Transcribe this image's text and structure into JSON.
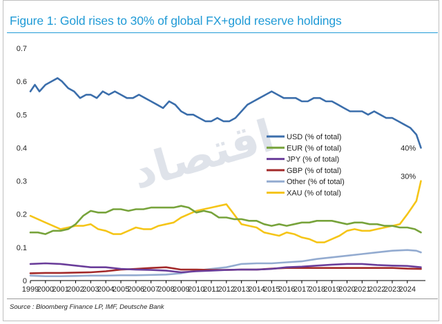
{
  "header": {
    "title": "Figure 1: Gold rises to 30% of global FX+gold reserve holdings"
  },
  "footer": {
    "source": "Source : Bloomberg Finance LP, IMF, Deutsche Bank"
  },
  "watermark": {
    "text": "اقتصاد"
  },
  "chart_data": {
    "type": "line",
    "title": "Figure 1: Gold rises to 30% of global FX+gold reserve holdings",
    "xlabel": "",
    "ylabel": "",
    "xlim": [
      1999,
      2025.2
    ],
    "ylim": [
      0,
      0.7
    ],
    "yticks": [
      "0",
      "0.1",
      "0.2",
      "0.3",
      "0.4",
      "0.5",
      "0.6",
      "0.7"
    ],
    "yticks_values": [
      0,
      0.1,
      0.2,
      0.3,
      0.4,
      0.5,
      0.6,
      0.7
    ],
    "xticks": [
      "1999",
      "2000",
      "2001",
      "2002",
      "2003",
      "2004",
      "2005",
      "2006",
      "2007",
      "2008",
      "2009",
      "2010",
      "2011",
      "2012",
      "2013",
      "2014",
      "2015",
      "2016",
      "2017",
      "2018",
      "2019",
      "2020",
      "2021",
      "2022",
      "2023",
      "2024"
    ],
    "legend_position": "center-right",
    "series": [
      {
        "name": "USD (% of total)",
        "color": "#3b6eab",
        "x": [
          1999,
          1999.3,
          1999.6,
          2000,
          2000.4,
          2000.8,
          2001.1,
          2001.5,
          2001.9,
          2002.3,
          2002.7,
          2003,
          2003.4,
          2003.8,
          2004.2,
          2004.6,
          2005,
          2005.4,
          2005.8,
          2006.2,
          2006.6,
          2007,
          2007.4,
          2007.8,
          2008.2,
          2008.6,
          2009,
          2009.4,
          2009.8,
          2010.2,
          2010.6,
          2011,
          2011.4,
          2011.8,
          2012.2,
          2012.6,
          2013,
          2013.4,
          2013.8,
          2014.2,
          2014.6,
          2015,
          2015.4,
          2015.8,
          2016.2,
          2016.6,
          2017,
          2017.4,
          2017.8,
          2018.2,
          2018.6,
          2019,
          2019.4,
          2019.8,
          2020.2,
          2020.6,
          2021,
          2021.4,
          2021.8,
          2022.2,
          2022.6,
          2023,
          2023.4,
          2023.8,
          2024.2,
          2024.6,
          2024.9
        ],
        "values": [
          0.57,
          0.59,
          0.57,
          0.59,
          0.6,
          0.61,
          0.6,
          0.58,
          0.57,
          0.55,
          0.56,
          0.56,
          0.55,
          0.57,
          0.56,
          0.57,
          0.56,
          0.55,
          0.55,
          0.56,
          0.55,
          0.54,
          0.53,
          0.52,
          0.54,
          0.53,
          0.51,
          0.5,
          0.5,
          0.49,
          0.48,
          0.48,
          0.49,
          0.48,
          0.48,
          0.49,
          0.51,
          0.53,
          0.54,
          0.55,
          0.56,
          0.57,
          0.56,
          0.55,
          0.55,
          0.55,
          0.54,
          0.54,
          0.55,
          0.55,
          0.54,
          0.54,
          0.53,
          0.52,
          0.51,
          0.51,
          0.51,
          0.5,
          0.51,
          0.5,
          0.49,
          0.49,
          0.48,
          0.47,
          0.46,
          0.44,
          0.4
        ]
      },
      {
        "name": "EUR (% of total)",
        "color": "#77a33b",
        "x": [
          1999,
          1999.5,
          2000,
          2000.5,
          2001,
          2001.5,
          2002,
          2002.5,
          2003,
          2003.5,
          2004,
          2004.5,
          2005,
          2005.5,
          2006,
          2006.5,
          2007,
          2007.5,
          2008,
          2008.5,
          2009,
          2009.5,
          2010,
          2010.5,
          2011,
          2011.5,
          2012,
          2012.5,
          2013,
          2013.5,
          2014,
          2014.5,
          2015,
          2015.5,
          2016,
          2016.5,
          2017,
          2017.5,
          2018,
          2018.5,
          2019,
          2019.5,
          2020,
          2020.5,
          2021,
          2021.5,
          2022,
          2022.5,
          2023,
          2023.5,
          2024,
          2024.5,
          2024.9
        ],
        "values": [
          0.145,
          0.145,
          0.14,
          0.15,
          0.15,
          0.155,
          0.17,
          0.195,
          0.21,
          0.205,
          0.205,
          0.215,
          0.215,
          0.21,
          0.215,
          0.215,
          0.22,
          0.22,
          0.22,
          0.22,
          0.225,
          0.22,
          0.205,
          0.21,
          0.205,
          0.19,
          0.19,
          0.185,
          0.185,
          0.18,
          0.18,
          0.17,
          0.165,
          0.17,
          0.165,
          0.17,
          0.175,
          0.175,
          0.18,
          0.18,
          0.18,
          0.175,
          0.17,
          0.175,
          0.175,
          0.17,
          0.17,
          0.165,
          0.165,
          0.16,
          0.16,
          0.155,
          0.145
        ]
      },
      {
        "name": "JPY (% of total)",
        "color": "#6a3d9a",
        "x": [
          1999,
          2000,
          2001,
          2002,
          2003,
          2004,
          2005,
          2006,
          2007,
          2008,
          2009,
          2010,
          2011,
          2012,
          2013,
          2014,
          2015,
          2016,
          2017,
          2018,
          2019,
          2020,
          2021,
          2022,
          2023,
          2024,
          2024.9
        ],
        "values": [
          0.05,
          0.052,
          0.05,
          0.045,
          0.04,
          0.04,
          0.035,
          0.033,
          0.032,
          0.03,
          0.025,
          0.028,
          0.03,
          0.032,
          0.033,
          0.033,
          0.035,
          0.04,
          0.042,
          0.045,
          0.048,
          0.05,
          0.05,
          0.047,
          0.045,
          0.044,
          0.04
        ]
      },
      {
        "name": "GBP (% of total)",
        "color": "#a32a2a",
        "x": [
          1999,
          2000,
          2001,
          2002,
          2003,
          2004,
          2005,
          2006,
          2007,
          2008,
          2009,
          2010,
          2011,
          2012,
          2013,
          2014,
          2015,
          2016,
          2017,
          2018,
          2019,
          2020,
          2021,
          2022,
          2023,
          2024,
          2024.9
        ],
        "values": [
          0.022,
          0.023,
          0.023,
          0.024,
          0.025,
          0.028,
          0.033,
          0.035,
          0.038,
          0.04,
          0.033,
          0.033,
          0.032,
          0.032,
          0.033,
          0.033,
          0.036,
          0.038,
          0.038,
          0.038,
          0.038,
          0.038,
          0.038,
          0.038,
          0.038,
          0.036,
          0.035
        ]
      },
      {
        "name": "Other (% of total)",
        "color": "#93abd0",
        "x": [
          1999,
          2000,
          2001,
          2002,
          2003,
          2004,
          2005,
          2006,
          2007,
          2008,
          2009,
          2010,
          2011,
          2012,
          2013,
          2014,
          2015,
          2016,
          2017,
          2018,
          2019,
          2020,
          2021,
          2022,
          2023,
          2024,
          2024.6,
          2024.9
        ],
        "values": [
          0.015,
          0.013,
          0.013,
          0.014,
          0.015,
          0.015,
          0.016,
          0.016,
          0.017,
          0.018,
          0.022,
          0.03,
          0.035,
          0.04,
          0.05,
          0.052,
          0.052,
          0.055,
          0.058,
          0.065,
          0.07,
          0.075,
          0.08,
          0.085,
          0.09,
          0.092,
          0.09,
          0.085
        ]
      },
      {
        "name": "XAU (% of total)",
        "color": "#f5c518",
        "x": [
          1999,
          1999.5,
          2000,
          2000.5,
          2001,
          2001.5,
          2002,
          2002.5,
          2003,
          2003.5,
          2004,
          2004.5,
          2005,
          2005.5,
          2006,
          2006.5,
          2007,
          2007.5,
          2008,
          2008.5,
          2009,
          2009.5,
          2010,
          2010.5,
          2011,
          2011.5,
          2012,
          2012.5,
          2013,
          2013.5,
          2014,
          2014.5,
          2015,
          2015.5,
          2016,
          2016.5,
          2017,
          2017.5,
          2018,
          2018.5,
          2019,
          2019.5,
          2020,
          2020.5,
          2021,
          2021.5,
          2022,
          2022.5,
          2023,
          2023.5,
          2024,
          2024.3,
          2024.6,
          2024.9
        ],
        "values": [
          0.195,
          0.185,
          0.175,
          0.165,
          0.155,
          0.16,
          0.165,
          0.165,
          0.17,
          0.155,
          0.15,
          0.14,
          0.14,
          0.15,
          0.16,
          0.155,
          0.155,
          0.165,
          0.17,
          0.175,
          0.19,
          0.2,
          0.21,
          0.215,
          0.22,
          0.225,
          0.23,
          0.2,
          0.17,
          0.165,
          0.16,
          0.145,
          0.14,
          0.135,
          0.145,
          0.14,
          0.13,
          0.125,
          0.115,
          0.115,
          0.125,
          0.135,
          0.15,
          0.155,
          0.15,
          0.15,
          0.155,
          0.16,
          0.165,
          0.17,
          0.2,
          0.22,
          0.24,
          0.3
        ]
      }
    ],
    "annotations": [
      {
        "text": "40%",
        "x": 2024.2,
        "y": 0.385
      },
      {
        "text": "30%",
        "x": 2024.2,
        "y": 0.3
      }
    ]
  }
}
